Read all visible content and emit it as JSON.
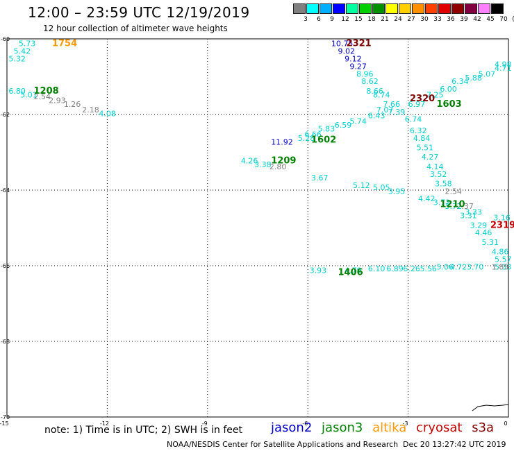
{
  "title": "12:00 – 23:59 UTC 12/19/2019",
  "subtitle": "12 hour collection of altimeter wave heights",
  "color_scale": {
    "labels": [
      "3",
      "6",
      "9",
      "12",
      "15",
      "18",
      "21",
      "24",
      "27",
      "30",
      "33",
      "36",
      "39",
      "42",
      "45",
      "70",
      "(ft)"
    ],
    "colors": [
      "#808080",
      "#00ffff",
      "#00b0ff",
      "#0000ff",
      "#00ffa0",
      "#00d000",
      "#009000",
      "#ffff00",
      "#ffd000",
      "#ff9000",
      "#ff4000",
      "#e00000",
      "#900000",
      "#800040",
      "#ff80ff",
      "#000000"
    ]
  },
  "axes": {
    "x_ticks": [
      "-15",
      "-12",
      "-9",
      "-6",
      "-3",
      "0"
    ],
    "y_ticks": [
      "-60",
      "-62",
      "-64",
      "-66",
      "-68",
      "-70"
    ]
  },
  "pass_colors": {
    "jason2": "#0000c0",
    "jason3": "#008000",
    "altika": "#ff9900",
    "cryosat": "#c00000",
    "s3a": "#800000"
  },
  "swh_colors": {
    "low": "#808080",
    "mid": "#00d0d0",
    "high": "#0000c0"
  },
  "pass_labels": [
    {
      "id": "2321",
      "lon": -4.85,
      "lat": -60.05,
      "sat": "s3a"
    },
    {
      "id": "1754",
      "lon": -13.65,
      "lat": -60.05,
      "sat": "altika"
    },
    {
      "id": "1208",
      "lon": -14.2,
      "lat": -61.3,
      "sat": "jason3"
    },
    {
      "id": "2320",
      "lon": -2.95,
      "lat": -61.5,
      "sat": "s3a"
    },
    {
      "id": "1603",
      "lon": -2.15,
      "lat": -61.65,
      "sat": "jason3"
    },
    {
      "id": "1602",
      "lon": -5.9,
      "lat": -62.6,
      "sat": "jason3"
    },
    {
      "id": "1209",
      "lon": -7.1,
      "lat": -63.15,
      "sat": "jason3"
    },
    {
      "id": "1210",
      "lon": -2.05,
      "lat": -64.3,
      "sat": "jason3"
    },
    {
      "id": "2319",
      "lon": -0.45,
      "lat": -64.85,
      "sat": "cryosat"
    },
    {
      "id": "1406",
      "lon": -5.1,
      "lat": -66.1,
      "sat": "jason3"
    }
  ],
  "swh_values": [
    {
      "v": "5.73",
      "lon": -14.65,
      "lat": -60.05,
      "c": "mid"
    },
    {
      "v": "5.42",
      "lon": -14.8,
      "lat": -60.25,
      "c": "mid"
    },
    {
      "v": "5.32",
      "lon": -14.95,
      "lat": -60.45,
      "c": "mid"
    },
    {
      "v": "6.80",
      "lon": -14.95,
      "lat": -61.3,
      "c": "mid"
    },
    {
      "v": "5.01",
      "lon": -14.6,
      "lat": -61.4,
      "c": "mid"
    },
    {
      "v": "2.54",
      "lon": -14.2,
      "lat": -61.45,
      "c": "low"
    },
    {
      "v": "2.93",
      "lon": -13.75,
      "lat": -61.55,
      "c": "low"
    },
    {
      "v": "1.26",
      "lon": -13.3,
      "lat": -61.65,
      "c": "low"
    },
    {
      "v": "2.18",
      "lon": -12.75,
      "lat": -61.8,
      "c": "low"
    },
    {
      "v": "4.08",
      "lon": -12.25,
      "lat": -61.9,
      "c": "mid"
    },
    {
      "v": "10.75",
      "lon": -5.3,
      "lat": -60.05,
      "c": "high"
    },
    {
      "v": "9.02",
      "lon": -5.1,
      "lat": -60.25,
      "c": "high"
    },
    {
      "v": "9.12",
      "lon": -4.9,
      "lat": -60.45,
      "c": "high"
    },
    {
      "v": "9.27",
      "lon": -4.75,
      "lat": -60.65,
      "c": "high"
    },
    {
      "v": "8.96",
      "lon": -4.55,
      "lat": -60.85,
      "c": "mid"
    },
    {
      "v": "8.62",
      "lon": -4.4,
      "lat": -61.05,
      "c": "mid"
    },
    {
      "v": "8.66",
      "lon": -4.25,
      "lat": -61.3,
      "c": "mid"
    },
    {
      "v": "8.74",
      "lon": -4.05,
      "lat": -61.4,
      "c": "mid"
    },
    {
      "v": "7.66",
      "lon": -3.75,
      "lat": -61.65,
      "c": "mid"
    },
    {
      "v": "7.07",
      "lon": -3.95,
      "lat": -61.8,
      "c": "mid"
    },
    {
      "v": "7.39",
      "lon": -3.6,
      "lat": -61.85,
      "c": "mid"
    },
    {
      "v": "6.74",
      "lon": -3.1,
      "lat": -62.05,
      "c": "mid"
    },
    {
      "v": "6.32",
      "lon": -2.95,
      "lat": -62.35,
      "c": "mid"
    },
    {
      "v": "4.84",
      "lon": -2.85,
      "lat": -62.55,
      "c": "mid"
    },
    {
      "v": "5.51",
      "lon": -2.75,
      "lat": -62.8,
      "c": "mid"
    },
    {
      "v": "4.27",
      "lon": -2.6,
      "lat": -63.05,
      "c": "mid"
    },
    {
      "v": "4.14",
      "lon": -2.45,
      "lat": -63.3,
      "c": "mid"
    },
    {
      "v": "3.52",
      "lon": -2.35,
      "lat": -63.5,
      "c": "mid"
    },
    {
      "v": "3.58",
      "lon": -2.2,
      "lat": -63.75,
      "c": "mid"
    },
    {
      "v": "2.54",
      "lon": -1.9,
      "lat": -63.95,
      "c": "low"
    },
    {
      "v": "2.37",
      "lon": -1.55,
      "lat": -64.35,
      "c": "low"
    },
    {
      "v": "3.33",
      "lon": -1.3,
      "lat": -64.5,
      "c": "mid"
    },
    {
      "v": "3.31",
      "lon": -1.45,
      "lat": -64.6,
      "c": "mid"
    },
    {
      "v": "3.16",
      "lon": -0.45,
      "lat": -64.65,
      "c": "mid"
    },
    {
      "v": "3.29",
      "lon": -1.15,
      "lat": -64.85,
      "c": "mid"
    },
    {
      "v": "4.46",
      "lon": -1.0,
      "lat": -65.05,
      "c": "mid"
    },
    {
      "v": "5.31",
      "lon": -0.8,
      "lat": -65.3,
      "c": "mid"
    },
    {
      "v": "4.86",
      "lon": -0.5,
      "lat": -65.55,
      "c": "mid"
    },
    {
      "v": "5.57",
      "lon": -0.3,
      "lat": -65.75,
      "c": "mid"
    },
    {
      "v": "5.33",
      "lon": -0.1,
      "lat": -65.95,
      "c": "mid"
    },
    {
      "v": "1.85",
      "lon": -0.5,
      "lat": -65.95,
      "c": "low"
    },
    {
      "v": "3.70",
      "lon": -1.25,
      "lat": -65.95,
      "c": "mid"
    },
    {
      "v": "4.72",
      "lon": -1.75,
      "lat": -65.95,
      "c": "mid"
    },
    {
      "v": "5.06",
      "lon": -2.15,
      "lat": -65.95,
      "c": "mid"
    },
    {
      "v": "5.56",
      "lon": -2.65,
      "lat": -66.0,
      "c": "mid"
    },
    {
      "v": "6.26",
      "lon": -3.15,
      "lat": -66.0,
      "c": "mid"
    },
    {
      "v": "6.89",
      "lon": -3.65,
      "lat": -66.0,
      "c": "mid"
    },
    {
      "v": "6.10",
      "lon": -4.2,
      "lat": -66.0,
      "c": "mid"
    },
    {
      "v": "4.79",
      "lon": -4.9,
      "lat": -66.05,
      "c": "mid"
    },
    {
      "v": "3.93",
      "lon": -5.95,
      "lat": -66.05,
      "c": "mid"
    },
    {
      "v": "4.71",
      "lon": -0.05,
      "lat": -60.7,
      "c": "mid"
    },
    {
      "v": "4.98",
      "lon": 0.0,
      "lat": -60.6,
      "c": "mid"
    },
    {
      "v": "5.07",
      "lon": -0.9,
      "lat": -60.85,
      "c": "mid"
    },
    {
      "v": "5.88",
      "lon": -1.3,
      "lat": -60.95,
      "c": "mid"
    },
    {
      "v": "6.34",
      "lon": -1.7,
      "lat": -61.05,
      "c": "mid"
    },
    {
      "v": "6.00",
      "lon": -2.05,
      "lat": -61.25,
      "c": "mid"
    },
    {
      "v": "7.25",
      "lon": -2.45,
      "lat": -61.4,
      "c": "mid"
    },
    {
      "v": "6.97",
      "lon": -3.0,
      "lat": -61.65,
      "c": "mid"
    },
    {
      "v": "6.43",
      "lon": -4.2,
      "lat": -61.95,
      "c": "mid"
    },
    {
      "v": "5.74",
      "lon": -4.75,
      "lat": -62.1,
      "c": "mid"
    },
    {
      "v": "6.59",
      "lon": -5.2,
      "lat": -62.2,
      "c": "mid"
    },
    {
      "v": "5.83",
      "lon": -5.7,
      "lat": -62.3,
      "c": "mid"
    },
    {
      "v": "6.66",
      "lon": -6.1,
      "lat": -62.45,
      "c": "mid"
    },
    {
      "v": "5.28",
      "lon": -6.3,
      "lat": -62.55,
      "c": "mid"
    },
    {
      "v": "11.92",
      "lon": -7.1,
      "lat": -62.65,
      "c": "high"
    },
    {
      "v": "4.26",
      "lon": -8.0,
      "lat": -63.15,
      "c": "mid"
    },
    {
      "v": "3.38",
      "lon": -7.6,
      "lat": -63.25,
      "c": "mid"
    },
    {
      "v": "2.80",
      "lon": -7.15,
      "lat": -63.3,
      "c": "low"
    },
    {
      "v": "3.67",
      "lon": -5.9,
      "lat": -63.6,
      "c": "mid"
    },
    {
      "v": "5.12",
      "lon": -4.65,
      "lat": -63.8,
      "c": "mid"
    },
    {
      "v": "5.05",
      "lon": -4.05,
      "lat": -63.85,
      "c": "mid"
    },
    {
      "v": "3.95",
      "lon": -3.6,
      "lat": -63.95,
      "c": "mid"
    },
    {
      "v": "4.42",
      "lon": -2.7,
      "lat": -64.15,
      "c": "mid"
    },
    {
      "v": "3.73",
      "lon": -2.25,
      "lat": -64.25,
      "c": "mid"
    },
    {
      "v": "3.72",
      "lon": -1.9,
      "lat": -64.35,
      "c": "mid"
    }
  ],
  "note": "note: 1) Time is in UTC; 2) SWH is in feet",
  "legend": [
    {
      "key": "jason2",
      "label": "jason2"
    },
    {
      "key": "jason3",
      "label": "jason3"
    },
    {
      "key": "altika",
      "label": "altika"
    },
    {
      "key": "cryosat",
      "label": "cryosat"
    },
    {
      "key": "s3a",
      "label": "s3a"
    }
  ],
  "credit": "NOAA/NESDIS Center for Satellite Applications and Research",
  "timestamp": "Dec 20 13:27:42 UTC 2019"
}
